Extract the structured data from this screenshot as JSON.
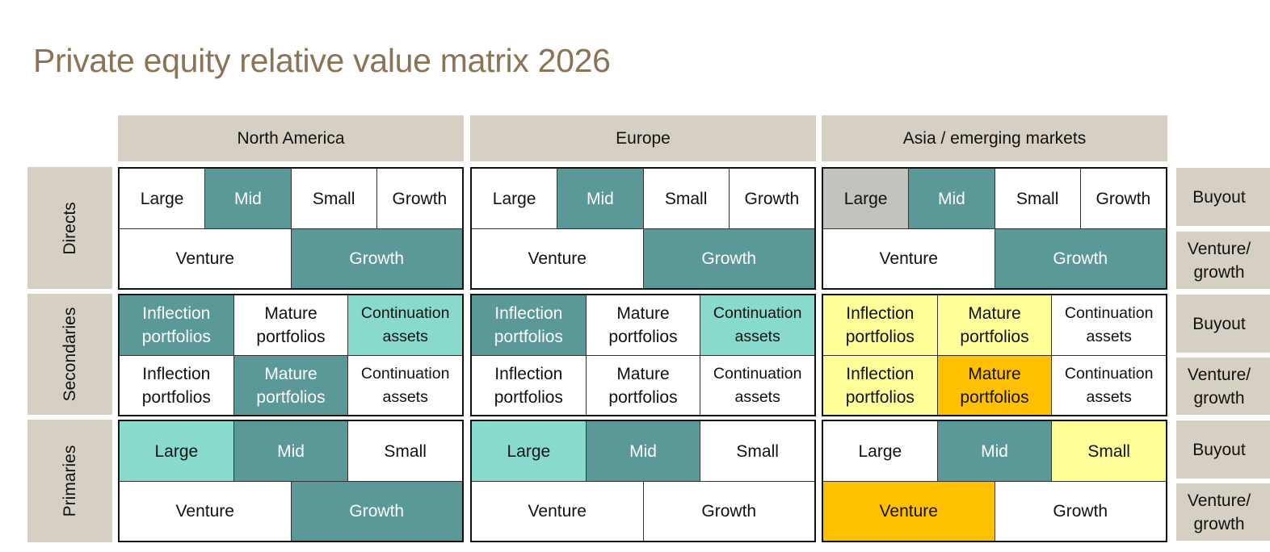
{
  "title": "Private equity relative value matrix 2026",
  "colors": {
    "title": "#8B7355",
    "label_bg": "#D6CFC3",
    "white": "#FFFFFF",
    "teal": "#5B9898",
    "aqua": "#88DBCC",
    "gray": "#C2C3BE",
    "light_yellow": "#FFFF99",
    "orange": "#FFC000"
  },
  "columns": [
    "North America",
    "Europe",
    "Asia / emerging markets"
  ],
  "sections": [
    "Directs",
    "Secondaries",
    "Primaries"
  ],
  "row_labels": [
    "Buyout",
    "Venture/\ngrowth"
  ],
  "matrix": {
    "directs": {
      "north_america": {
        "buyout": [
          {
            "label": "Large",
            "color": "white"
          },
          {
            "label": "Mid",
            "color": "teal"
          },
          {
            "label": "Small",
            "color": "white"
          },
          {
            "label": "Growth",
            "color": "white"
          }
        ],
        "venture_growth": [
          {
            "label": "Venture",
            "color": "white"
          },
          {
            "label": "Growth",
            "color": "teal"
          }
        ]
      },
      "europe": {
        "buyout": [
          {
            "label": "Large",
            "color": "white"
          },
          {
            "label": "Mid",
            "color": "teal"
          },
          {
            "label": "Small",
            "color": "white"
          },
          {
            "label": "Growth",
            "color": "white"
          }
        ],
        "venture_growth": [
          {
            "label": "Venture",
            "color": "white"
          },
          {
            "label": "Growth",
            "color": "teal"
          }
        ]
      },
      "asia": {
        "buyout": [
          {
            "label": "Large",
            "color": "gray"
          },
          {
            "label": "Mid",
            "color": "teal"
          },
          {
            "label": "Small",
            "color": "white"
          },
          {
            "label": "Growth",
            "color": "white"
          }
        ],
        "venture_growth": [
          {
            "label": "Venture",
            "color": "white"
          },
          {
            "label": "Growth",
            "color": "teal"
          }
        ]
      }
    },
    "secondaries": {
      "north_america": {
        "buyout": [
          {
            "label": "Inflection\nportfolios",
            "color": "teal"
          },
          {
            "label": "Mature\nportfolios",
            "color": "white"
          },
          {
            "label": "Continuation\nassets",
            "color": "aqua"
          }
        ],
        "venture_growth": [
          {
            "label": "Inflection\nportfolios",
            "color": "white"
          },
          {
            "label": "Mature\nportfolios",
            "color": "teal"
          },
          {
            "label": "Continuation\nassets",
            "color": "white"
          }
        ]
      },
      "europe": {
        "buyout": [
          {
            "label": "Inflection\nportfolios",
            "color": "teal"
          },
          {
            "label": "Mature\nportfolios",
            "color": "white"
          },
          {
            "label": "Continuation\nassets",
            "color": "aqua"
          }
        ],
        "venture_growth": [
          {
            "label": "Inflection\nportfolios",
            "color": "white"
          },
          {
            "label": "Mature\nportfolios",
            "color": "white"
          },
          {
            "label": "Continuation\nassets",
            "color": "white"
          }
        ]
      },
      "asia": {
        "buyout": [
          {
            "label": "Inflection\nportfolios",
            "color": "light_yellow"
          },
          {
            "label": "Mature\nportfolios",
            "color": "light_yellow"
          },
          {
            "label": "Continuation\nassets",
            "color": "white"
          }
        ],
        "venture_growth": [
          {
            "label": "Inflection\nportfolios",
            "color": "light_yellow"
          },
          {
            "label": "Mature\nportfolios",
            "color": "orange"
          },
          {
            "label": "Continuation\nassets",
            "color": "white"
          }
        ]
      }
    },
    "primaries": {
      "north_america": {
        "buyout": [
          {
            "label": "Large",
            "color": "aqua"
          },
          {
            "label": "Mid",
            "color": "teal"
          },
          {
            "label": "Small",
            "color": "white"
          }
        ],
        "venture_growth": [
          {
            "label": "Venture",
            "color": "white"
          },
          {
            "label": "Growth",
            "color": "teal"
          }
        ]
      },
      "europe": {
        "buyout": [
          {
            "label": "Large",
            "color": "aqua"
          },
          {
            "label": "Mid",
            "color": "teal"
          },
          {
            "label": "Small",
            "color": "white"
          }
        ],
        "venture_growth": [
          {
            "label": "Venture",
            "color": "white"
          },
          {
            "label": "Growth",
            "color": "white"
          }
        ]
      },
      "asia": {
        "buyout": [
          {
            "label": "Large",
            "color": "white"
          },
          {
            "label": "Mid",
            "color": "teal"
          },
          {
            "label": "Small",
            "color": "light_yellow"
          }
        ],
        "venture_growth": [
          {
            "label": "Venture",
            "color": "orange"
          },
          {
            "label": "Growth",
            "color": "white"
          }
        ]
      }
    }
  }
}
